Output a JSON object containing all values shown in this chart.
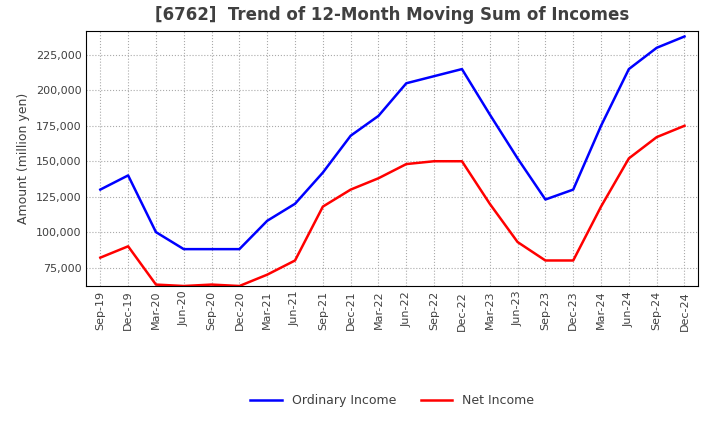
{
  "title": "[6762]  Trend of 12-Month Moving Sum of Incomes",
  "ylabel": "Amount (million yen)",
  "ylim": [
    62000,
    242000
  ],
  "yticks": [
    75000,
    100000,
    125000,
    150000,
    175000,
    200000,
    225000
  ],
  "x_labels": [
    "Sep-19",
    "Dec-19",
    "Mar-20",
    "Jun-20",
    "Sep-20",
    "Dec-20",
    "Mar-21",
    "Jun-21",
    "Sep-21",
    "Dec-21",
    "Mar-22",
    "Jun-22",
    "Sep-22",
    "Dec-22",
    "Mar-23",
    "Jun-23",
    "Sep-23",
    "Dec-23",
    "Mar-24",
    "Jun-24",
    "Sep-24",
    "Dec-24"
  ],
  "ordinary_income": [
    130000,
    140000,
    100000,
    88000,
    88000,
    88000,
    108000,
    120000,
    142000,
    168000,
    182000,
    205000,
    210000,
    215000,
    183000,
    152000,
    123000,
    130000,
    175000,
    215000,
    230000,
    238000
  ],
  "net_income": [
    82000,
    90000,
    63000,
    62000,
    63000,
    62000,
    70000,
    80000,
    118000,
    130000,
    138000,
    148000,
    150000,
    150000,
    120000,
    93000,
    80000,
    80000,
    118000,
    152000,
    167000,
    175000
  ],
  "ordinary_color": "#0000ff",
  "net_color": "#ff0000",
  "grid_color": "#aaaaaa",
  "background_color": "#ffffff",
  "title_color": "#404040",
  "legend_labels": [
    "Ordinary Income",
    "Net Income"
  ],
  "title_fontsize": 12,
  "tick_fontsize": 8,
  "ylabel_fontsize": 9
}
